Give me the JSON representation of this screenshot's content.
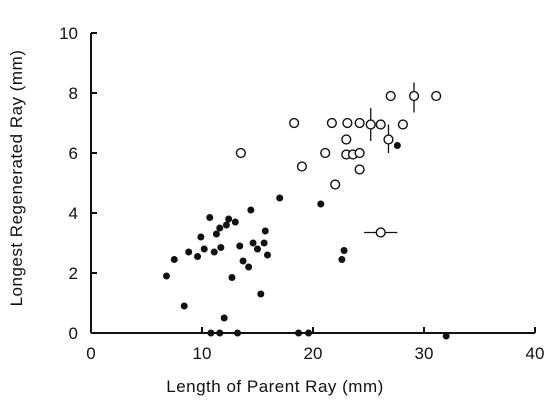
{
  "chart_data": {
    "type": "scatter",
    "title": "",
    "xlabel": "Length of Parent Ray  (mm)",
    "ylabel": "Longest Regenerated Ray (mm)",
    "xlim": [
      0,
      40
    ],
    "ylim": [
      0,
      10
    ],
    "x_ticks": [
      0,
      10,
      20,
      30,
      40
    ],
    "y_ticks": [
      0,
      2,
      4,
      6,
      8,
      10
    ],
    "grid": false,
    "legend": "none",
    "series": [
      {
        "marker": "filled-circle",
        "color": "#111111",
        "points": [
          [
            6.8,
            1.9
          ],
          [
            7.5,
            2.45
          ],
          [
            8.4,
            0.9
          ],
          [
            8.8,
            2.7
          ],
          [
            9.6,
            2.55
          ],
          [
            9.9,
            3.2
          ],
          [
            10.2,
            2.8
          ],
          [
            10.7,
            3.85
          ],
          [
            11.1,
            2.7
          ],
          [
            11.3,
            3.3
          ],
          [
            11.6,
            3.5
          ],
          [
            11.7,
            2.85
          ],
          [
            12.0,
            0.5
          ],
          [
            12.2,
            3.6
          ],
          [
            12.4,
            3.8
          ],
          [
            12.7,
            1.85
          ],
          [
            13.0,
            3.7
          ],
          [
            13.4,
            2.9
          ],
          [
            13.7,
            2.4
          ],
          [
            14.2,
            2.2
          ],
          [
            14.4,
            4.1
          ],
          [
            14.6,
            3.0
          ],
          [
            15.0,
            2.8
          ],
          [
            15.3,
            1.3
          ],
          [
            15.6,
            3.0
          ],
          [
            15.7,
            3.4
          ],
          [
            15.9,
            2.6
          ],
          [
            17.0,
            4.5
          ],
          [
            20.7,
            4.3
          ],
          [
            22.6,
            2.45
          ],
          [
            22.8,
            2.75
          ],
          [
            27.6,
            6.25
          ],
          [
            10.8,
            0.0
          ],
          [
            11.6,
            0.0
          ],
          [
            13.2,
            0.0
          ],
          [
            18.7,
            0.0
          ],
          [
            19.6,
            0.0
          ],
          [
            32.0,
            -0.1
          ]
        ]
      },
      {
        "marker": "open-circle",
        "color": "#111111",
        "points": [
          [
            13.5,
            6.0
          ],
          [
            18.3,
            7.0
          ],
          [
            19.0,
            5.55
          ],
          [
            21.1,
            6.0
          ],
          [
            21.7,
            7.0
          ],
          [
            22.0,
            4.95
          ],
          [
            23.0,
            6.45
          ],
          [
            23.1,
            7.0
          ],
          [
            23.0,
            5.95
          ],
          [
            23.6,
            5.95
          ],
          [
            24.2,
            7.0
          ],
          [
            24.2,
            6.0
          ],
          [
            24.2,
            5.45
          ],
          [
            25.2,
            6.95
          ],
          [
            26.1,
            6.95
          ],
          [
            26.8,
            6.45
          ],
          [
            27.0,
            7.9
          ],
          [
            28.1,
            6.95
          ],
          [
            29.1,
            7.9
          ],
          [
            31.1,
            7.9
          ],
          [
            26.1,
            3.35
          ]
        ]
      }
    ],
    "error_bars": [
      {
        "x": 25.2,
        "y": 6.95,
        "direction": "vertical",
        "low": 6.4,
        "high": 7.5
      },
      {
        "x": 26.8,
        "y": 6.45,
        "direction": "vertical",
        "low": 6.0,
        "high": 6.95
      },
      {
        "x": 29.1,
        "y": 7.9,
        "direction": "vertical",
        "low": 7.35,
        "high": 8.35
      },
      {
        "x": 26.1,
        "y": 3.35,
        "direction": "horizontal",
        "low": 24.6,
        "high": 27.6
      }
    ]
  }
}
